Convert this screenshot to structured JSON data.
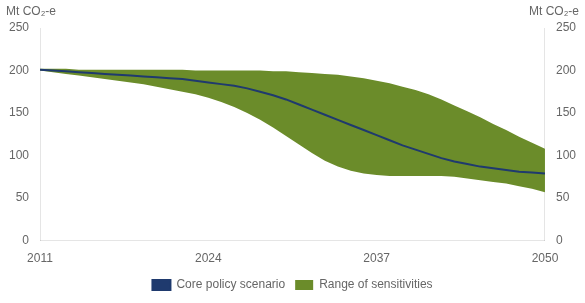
{
  "chart_data": {
    "type": "line",
    "ylabel": "Mt CO₂-e",
    "y2label": "Mt CO₂-e",
    "x": [
      2011,
      2012,
      2013,
      2014,
      2015,
      2016,
      2017,
      2018,
      2019,
      2020,
      2021,
      2022,
      2023,
      2024,
      2025,
      2026,
      2027,
      2028,
      2029,
      2030,
      2031,
      2032,
      2033,
      2034,
      2035,
      2036,
      2037,
      2038,
      2039,
      2040,
      2041,
      2042,
      2043,
      2044,
      2045,
      2046,
      2047,
      2048,
      2049,
      2050
    ],
    "series": [
      {
        "name": "Range of sensitivities",
        "type": "range",
        "color": "#6b8c2a",
        "lower": [
          200,
          198,
          196,
          194,
          192,
          190,
          188,
          186,
          184,
          181,
          178,
          175,
          172,
          168,
          163,
          157,
          150,
          142,
          133,
          123,
          113,
          103,
          94,
          87,
          82,
          79,
          77,
          76,
          76,
          76,
          76,
          76,
          75,
          73,
          71,
          69,
          67,
          64,
          61,
          57
        ],
        "upper": [
          202,
          202,
          202,
          201,
          201,
          201,
          201,
          201,
          201,
          201,
          201,
          201,
          200,
          200,
          200,
          200,
          200,
          200,
          199,
          199,
          198,
          197,
          196,
          195,
          193,
          191,
          188,
          185,
          181,
          177,
          172,
          166,
          159,
          152,
          145,
          137,
          130,
          122,
          115,
          108
        ]
      },
      {
        "name": "Core policy scenario",
        "type": "line",
        "color": "#1f3a6e",
        "values": [
          201,
          200,
          199,
          198,
          197,
          196,
          195,
          194,
          193,
          192,
          191,
          190,
          188,
          186,
          184,
          182,
          179,
          175,
          171,
          166,
          160,
          154,
          148,
          142,
          136,
          130,
          124,
          118,
          112,
          107,
          102,
          97,
          93,
          90,
          87,
          85,
          83,
          81,
          80,
          79
        ]
      }
    ],
    "xlim": [
      2011,
      2050
    ],
    "xticks": [
      2011,
      2024,
      2037,
      2050
    ],
    "ylim": [
      0,
      250
    ],
    "yticks": [
      0,
      50,
      100,
      150,
      200,
      250
    ],
    "y2lim": [
      0,
      250
    ],
    "y2ticks": [
      0,
      50,
      100,
      150,
      200,
      250
    ],
    "grid": false,
    "legend": "bottom"
  }
}
